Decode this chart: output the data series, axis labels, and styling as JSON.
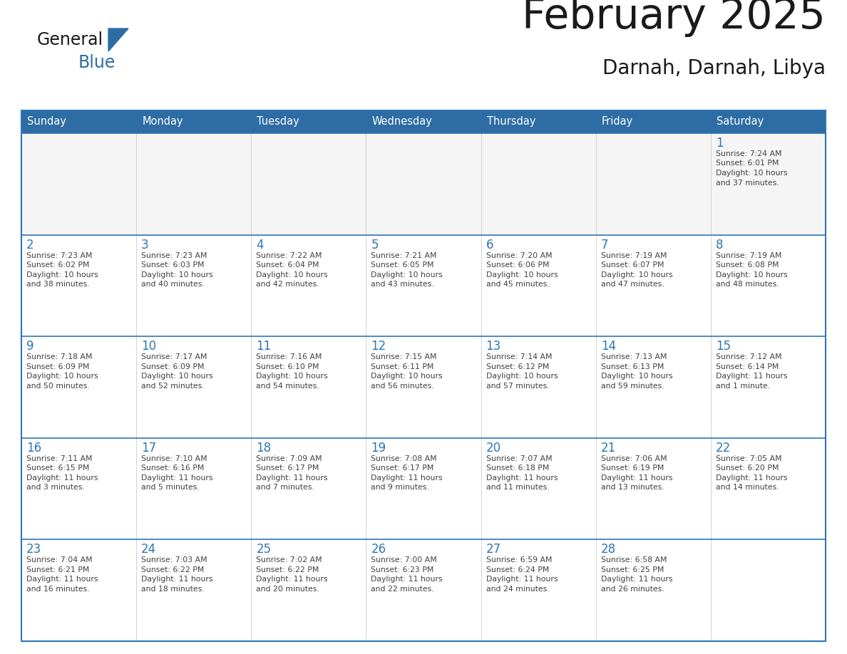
{
  "title": "February 2025",
  "subtitle": "Darnah, Darnah, Libya",
  "days_of_week": [
    "Sunday",
    "Monday",
    "Tuesday",
    "Wednesday",
    "Thursday",
    "Friday",
    "Saturday"
  ],
  "header_bg": "#2E6DA4",
  "header_text": "#FFFFFF",
  "cell_bg_light": "#F5F5F5",
  "cell_bg_white": "#FFFFFF",
  "border_color": "#2E75B6",
  "row_line_color": "#2E75B6",
  "day_num_color": "#2E75B6",
  "text_color": "#404040",
  "calendar": [
    [
      null,
      null,
      null,
      null,
      null,
      null,
      {
        "day": 1,
        "sunrise": "7:24 AM",
        "sunset": "6:01 PM",
        "daylight": "10 hours\nand 37 minutes."
      }
    ],
    [
      {
        "day": 2,
        "sunrise": "7:23 AM",
        "sunset": "6:02 PM",
        "daylight": "10 hours\nand 38 minutes."
      },
      {
        "day": 3,
        "sunrise": "7:23 AM",
        "sunset": "6:03 PM",
        "daylight": "10 hours\nand 40 minutes."
      },
      {
        "day": 4,
        "sunrise": "7:22 AM",
        "sunset": "6:04 PM",
        "daylight": "10 hours\nand 42 minutes."
      },
      {
        "day": 5,
        "sunrise": "7:21 AM",
        "sunset": "6:05 PM",
        "daylight": "10 hours\nand 43 minutes."
      },
      {
        "day": 6,
        "sunrise": "7:20 AM",
        "sunset": "6:06 PM",
        "daylight": "10 hours\nand 45 minutes."
      },
      {
        "day": 7,
        "sunrise": "7:19 AM",
        "sunset": "6:07 PM",
        "daylight": "10 hours\nand 47 minutes."
      },
      {
        "day": 8,
        "sunrise": "7:19 AM",
        "sunset": "6:08 PM",
        "daylight": "10 hours\nand 48 minutes."
      }
    ],
    [
      {
        "day": 9,
        "sunrise": "7:18 AM",
        "sunset": "6:09 PM",
        "daylight": "10 hours\nand 50 minutes."
      },
      {
        "day": 10,
        "sunrise": "7:17 AM",
        "sunset": "6:09 PM",
        "daylight": "10 hours\nand 52 minutes."
      },
      {
        "day": 11,
        "sunrise": "7:16 AM",
        "sunset": "6:10 PM",
        "daylight": "10 hours\nand 54 minutes."
      },
      {
        "day": 12,
        "sunrise": "7:15 AM",
        "sunset": "6:11 PM",
        "daylight": "10 hours\nand 56 minutes."
      },
      {
        "day": 13,
        "sunrise": "7:14 AM",
        "sunset": "6:12 PM",
        "daylight": "10 hours\nand 57 minutes."
      },
      {
        "day": 14,
        "sunrise": "7:13 AM",
        "sunset": "6:13 PM",
        "daylight": "10 hours\nand 59 minutes."
      },
      {
        "day": 15,
        "sunrise": "7:12 AM",
        "sunset": "6:14 PM",
        "daylight": "11 hours\nand 1 minute."
      }
    ],
    [
      {
        "day": 16,
        "sunrise": "7:11 AM",
        "sunset": "6:15 PM",
        "daylight": "11 hours\nand 3 minutes."
      },
      {
        "day": 17,
        "sunrise": "7:10 AM",
        "sunset": "6:16 PM",
        "daylight": "11 hours\nand 5 minutes."
      },
      {
        "day": 18,
        "sunrise": "7:09 AM",
        "sunset": "6:17 PM",
        "daylight": "11 hours\nand 7 minutes."
      },
      {
        "day": 19,
        "sunrise": "7:08 AM",
        "sunset": "6:17 PM",
        "daylight": "11 hours\nand 9 minutes."
      },
      {
        "day": 20,
        "sunrise": "7:07 AM",
        "sunset": "6:18 PM",
        "daylight": "11 hours\nand 11 minutes."
      },
      {
        "day": 21,
        "sunrise": "7:06 AM",
        "sunset": "6:19 PM",
        "daylight": "11 hours\nand 13 minutes."
      },
      {
        "day": 22,
        "sunrise": "7:05 AM",
        "sunset": "6:20 PM",
        "daylight": "11 hours\nand 14 minutes."
      }
    ],
    [
      {
        "day": 23,
        "sunrise": "7:04 AM",
        "sunset": "6:21 PM",
        "daylight": "11 hours\nand 16 minutes."
      },
      {
        "day": 24,
        "sunrise": "7:03 AM",
        "sunset": "6:22 PM",
        "daylight": "11 hours\nand 18 minutes."
      },
      {
        "day": 25,
        "sunrise": "7:02 AM",
        "sunset": "6:22 PM",
        "daylight": "11 hours\nand 20 minutes."
      },
      {
        "day": 26,
        "sunrise": "7:00 AM",
        "sunset": "6:23 PM",
        "daylight": "11 hours\nand 22 minutes."
      },
      {
        "day": 27,
        "sunrise": "6:59 AM",
        "sunset": "6:24 PM",
        "daylight": "11 hours\nand 24 minutes."
      },
      {
        "day": 28,
        "sunrise": "6:58 AM",
        "sunset": "6:25 PM",
        "daylight": "11 hours\nand 26 minutes."
      },
      null
    ]
  ],
  "logo_text_general": "General",
  "logo_text_blue": "Blue",
  "logo_triangle_color": "#2E6DA4"
}
